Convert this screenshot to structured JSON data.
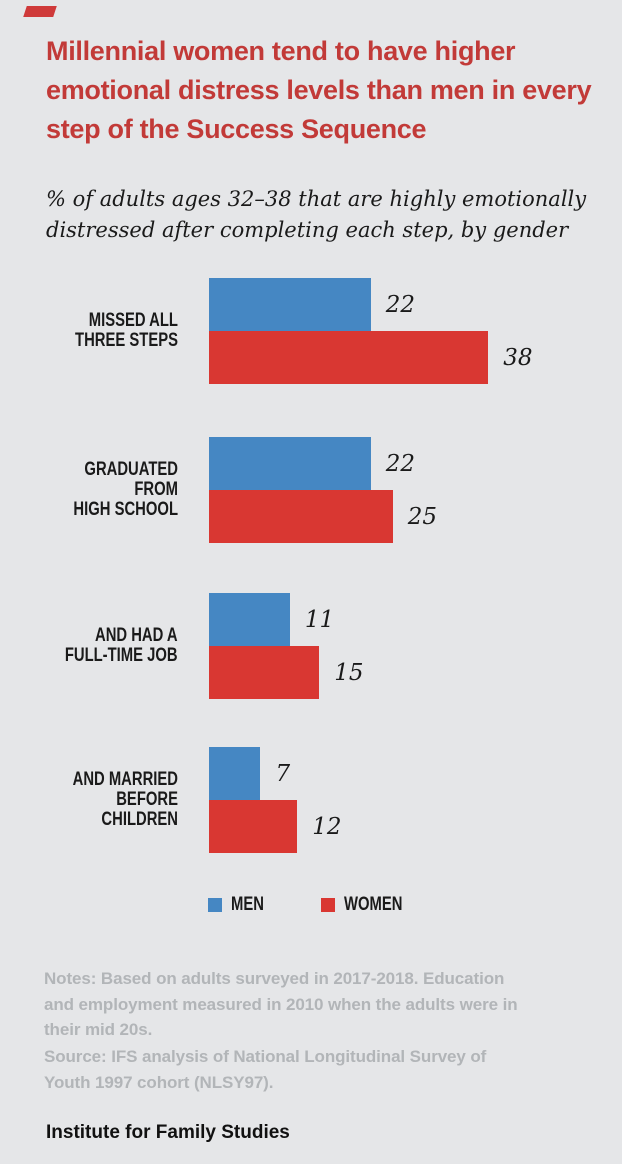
{
  "title": "Millennial women tend to have higher\nemotional distress levels than men in every\nstep of the Success Sequence",
  "subtitle": "% of adults ages 32–38 that are highly emotionally\ndistressed after completing each step, by gender",
  "colors": {
    "background": "#e5e6e8",
    "title_red": "#c23a38",
    "men_blue": "#4587c3",
    "women_red": "#d93732",
    "notes_gray": "#b2b5b8",
    "text": "#1a1a1a",
    "accent_mark": "#cf3a3a"
  },
  "chart_data": {
    "type": "bar",
    "orientation": "horizontal",
    "unit": "percent",
    "categories": [
      "MISSED ALL\nTHREE STEPS",
      "GRADUATED FROM\nHIGH SCHOOL",
      "AND HAD A\nFULL-TIME JOB",
      "AND MARRIED\nBEFORE CHILDREN"
    ],
    "series": [
      {
        "name": "MEN",
        "color": "#4587c3",
        "values": [
          22,
          22,
          11,
          7
        ]
      },
      {
        "name": "WOMEN",
        "color": "#d93732",
        "values": [
          38,
          25,
          15,
          12
        ]
      }
    ],
    "value_labels": true,
    "xlim": [
      0,
      40
    ],
    "grid": false,
    "legend_position": "bottom"
  },
  "notes": "Notes: Based on adults surveyed in 2017-2018. Education\nand employment measured in 2010 when the adults were in\ntheir mid 20s.",
  "source": "Source: IFS analysis of National Longitudinal Survey of\nYouth 1997 cohort (NLSY97).",
  "footer": "Institute for Family Studies"
}
